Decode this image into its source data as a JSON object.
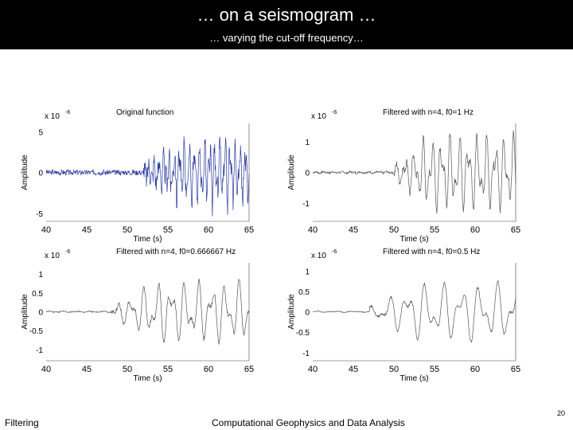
{
  "slide": {
    "title": "… on a seismogram …",
    "subtitle": "… varying the cut-off frequency…",
    "footer_left": "Filtering",
    "footer_center": "Computational Geophysics and Data Analysis",
    "page_number": "20"
  },
  "chart_data": [
    {
      "type": "line",
      "title": "Original function",
      "xlabel": "Time (s)",
      "ylabel": "Amplitude",
      "scale": "x 10",
      "exponent": "-6",
      "xlim": [
        40,
        65
      ],
      "ylim": [
        -6,
        6
      ],
      "xticks": [
        "40",
        "45",
        "50",
        "55",
        "60",
        "65"
      ],
      "yticks": [
        {
          "v": 5,
          "label": "5"
        },
        {
          "v": 0,
          "label": "0"
        },
        {
          "v": -5,
          "label": "-5"
        }
      ],
      "color": "#2a3a9c",
      "signal": {
        "onset": 52,
        "growth": 0.18,
        "peak_amp": 4.2,
        "freq": 1.6,
        "noise": 0.15,
        "seed": 3
      }
    },
    {
      "type": "line",
      "title": "Filtered with n=4, f0=1 Hz",
      "xlabel": "Time (s)",
      "ylabel": "Amplitude",
      "scale": "x 10",
      "exponent": "-6",
      "xlim": [
        40,
        65
      ],
      "ylim": [
        -1.6,
        1.6
      ],
      "xticks": [
        "40",
        "45",
        "50",
        "55",
        "60",
        "65"
      ],
      "yticks": [
        {
          "v": 1,
          "label": "1"
        },
        {
          "v": 0,
          "label": "0"
        },
        {
          "v": -1,
          "label": "-1"
        }
      ],
      "color": "#555555",
      "signal": {
        "onset": 50,
        "growth": 0.2,
        "peak_amp": 1.3,
        "freq": 0.9,
        "noise": 0.05,
        "seed": 7
      }
    },
    {
      "type": "line",
      "title": "Filtered with n=4, f0=0.666667 Hz",
      "xlabel": "Time (s)",
      "ylabel": "Amplitude",
      "scale": "x 10",
      "exponent": "-6",
      "xlim": [
        40,
        65
      ],
      "ylim": [
        -1.3,
        1.3
      ],
      "xticks": [
        "40",
        "45",
        "50",
        "55",
        "60",
        "65"
      ],
      "yticks": [
        {
          "v": 1,
          "label": "1"
        },
        {
          "v": 0.5,
          "label": "0.5"
        },
        {
          "v": 0,
          "label": "0"
        },
        {
          "v": -0.5,
          "label": "-0.5"
        },
        {
          "v": -1,
          "label": "-1"
        }
      ],
      "color": "#555555",
      "signal": {
        "onset": 48,
        "growth": 0.16,
        "peak_amp": 0.85,
        "freq": 0.6,
        "noise": 0.03,
        "seed": 11
      }
    },
    {
      "type": "line",
      "title": "Filtered with n=4, f0=0.5 Hz",
      "xlabel": "Time (s)",
      "ylabel": "Amplitude",
      "scale": "x 10",
      "exponent": "-6",
      "xlim": [
        40,
        65
      ],
      "ylim": [
        -1.2,
        1.2
      ],
      "xticks": [
        "40",
        "45",
        "50",
        "55",
        "60",
        "65"
      ],
      "yticks": [
        {
          "v": 1,
          "label": "1"
        },
        {
          "v": 0.5,
          "label": "0.5"
        },
        {
          "v": 0,
          "label": "0"
        },
        {
          "v": -0.5,
          "label": "-0.5"
        },
        {
          "v": -1,
          "label": "-1"
        }
      ],
      "color": "#555555",
      "signal": {
        "onset": 47,
        "growth": 0.15,
        "peak_amp": 0.75,
        "freq": 0.45,
        "noise": 0.02,
        "seed": 19
      }
    }
  ]
}
